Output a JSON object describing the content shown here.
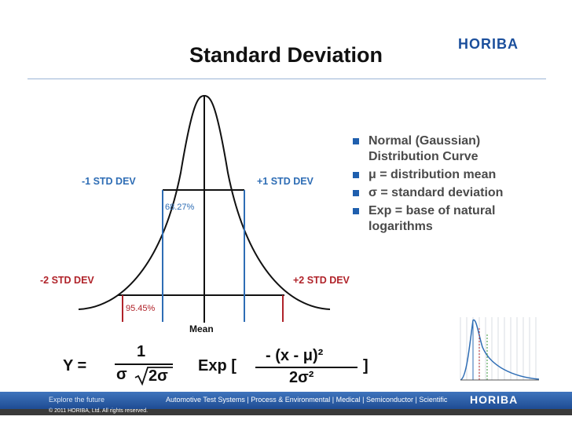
{
  "header": {
    "logo": "HORIBA",
    "title": "Standard Deviation"
  },
  "diagram": {
    "labels": {
      "minus1": "-1 STD  DEV",
      "plus1": "+1 STD  DEV",
      "minus2": "-2 STD  DEV",
      "plus2": "+2 STD  DEV",
      "pct68": "68.27%",
      "pct95": "95.45%",
      "mean": "Mean"
    },
    "colors": {
      "one_sd": "#2e6db5",
      "two_sd": "#b0232a",
      "curve": "#111111"
    }
  },
  "bullets": [
    "Normal (Gaussian) Distribution Curve",
    "μ = distribution mean",
    "σ = standard deviation",
    "Exp = base of natural logarithms"
  ],
  "formula": {
    "lhs": "Y =",
    "numerator": "1",
    "sigma": "σ",
    "radicand": "2σ",
    "exp": "Exp [",
    "exp_numerator": "- (x - μ)²",
    "exp_denominator": "2σ²",
    "close": "]"
  },
  "footer": {
    "tagline": "Explore the future",
    "segments": "Automotive Test Systems  |  Process & Environmental  |  Medical  |  Semiconductor  |  Scientific",
    "logo": "HORIBA",
    "copyright": "© 2011 HORIBA, Ltd. All rights reserved."
  }
}
